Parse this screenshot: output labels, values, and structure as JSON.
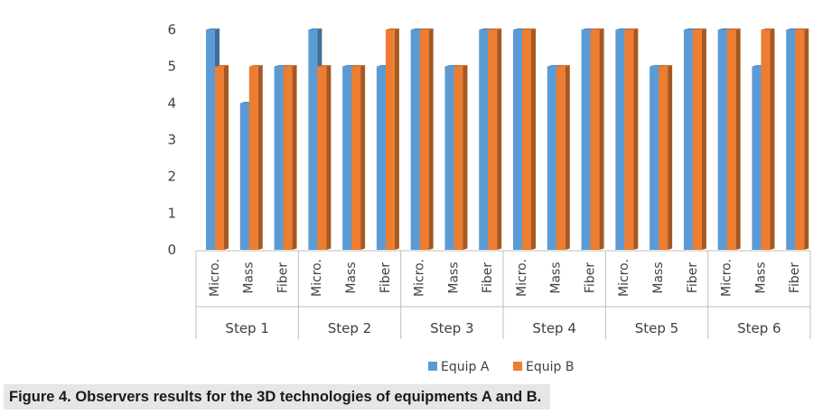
{
  "chart_data": {
    "type": "bar",
    "title": "",
    "xlabel": "",
    "ylabel": "",
    "ylim": [
      0,
      6
    ],
    "yticks": [
      0,
      1,
      2,
      3,
      4,
      5,
      6
    ],
    "groups": [
      "Step 1",
      "Step 2",
      "Step 3",
      "Step 4",
      "Step 5",
      "Step 6"
    ],
    "subcategories": [
      "Micro.",
      "Mass",
      "Fiber"
    ],
    "series": [
      {
        "name": "Equip A",
        "color": "#5b9bd5",
        "values": [
          [
            6,
            4,
            5
          ],
          [
            6,
            5,
            5
          ],
          [
            6,
            5,
            6
          ],
          [
            6,
            5,
            6
          ],
          [
            6,
            5,
            6
          ],
          [
            6,
            5,
            6
          ]
        ]
      },
      {
        "name": "Equip B",
        "color": "#ed7d31",
        "values": [
          [
            5,
            5,
            5
          ],
          [
            5,
            5,
            6
          ],
          [
            6,
            5,
            6
          ],
          [
            6,
            5,
            6
          ],
          [
            6,
            5,
            6
          ],
          [
            6,
            6,
            6
          ]
        ]
      }
    ],
    "legend": "bottom",
    "grid": false
  },
  "caption": "Figure 4. Observers results for the 3D technologies of equipments A and B."
}
